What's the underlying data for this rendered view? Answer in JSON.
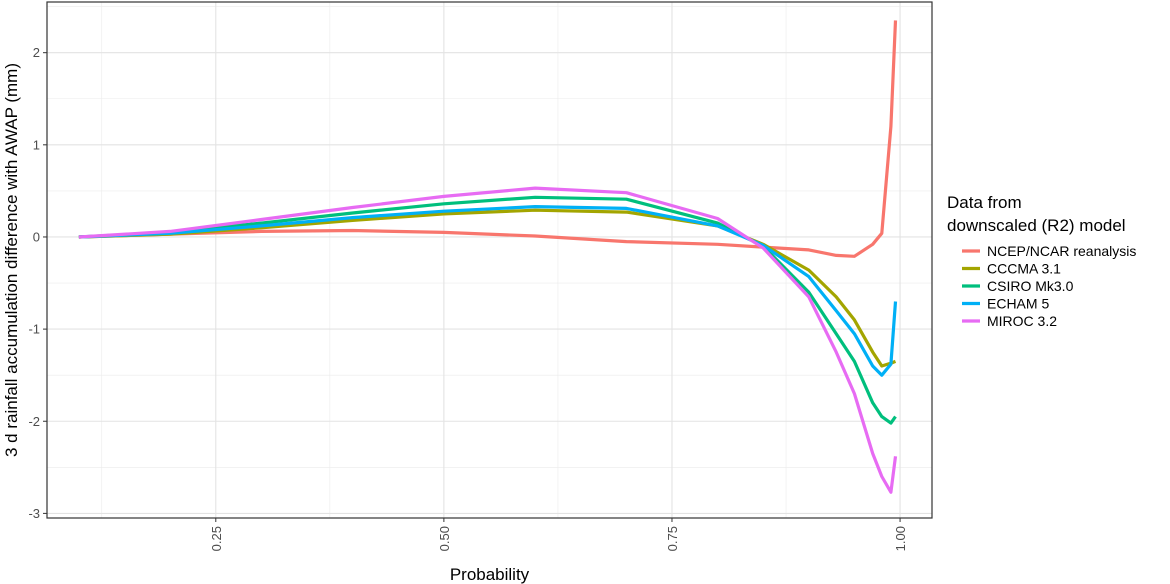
{
  "chart_data": {
    "type": "line",
    "title": "",
    "xlabel": "Probability",
    "ylabel": "3 d rainfall accumulation difference with AWAP (mm)",
    "xlim": [
      0.065,
      1.035
    ],
    "ylim": [
      -3.05,
      2.55
    ],
    "x_ticks": [
      0.25,
      0.5,
      0.75,
      1.0
    ],
    "x_tick_labels": [
      "0.25",
      "0.50",
      "0.75",
      "1.00"
    ],
    "y_ticks": [
      -3,
      -2,
      -1,
      0,
      1,
      2
    ],
    "y_tick_labels": [
      "-3",
      "-2",
      "-1",
      "0",
      "1",
      "2"
    ],
    "grid": true,
    "legend": {
      "title_lines": [
        "Data from",
        "downscaled (R2) model"
      ],
      "position": "right"
    },
    "x": [
      0.1,
      0.2,
      0.3,
      0.4,
      0.5,
      0.6,
      0.7,
      0.8,
      0.85,
      0.9,
      0.93,
      0.95,
      0.97,
      0.98,
      0.99,
      0.995
    ],
    "series": [
      {
        "name": "NCEP/NCAR reanalysis",
        "color": "#F8766D",
        "values": [
          0.0,
          0.03,
          0.06,
          0.07,
          0.05,
          0.01,
          -0.05,
          -0.08,
          -0.11,
          -0.14,
          -0.2,
          -0.21,
          -0.08,
          0.04,
          1.2,
          2.35
        ]
      },
      {
        "name": "CCCMA 3.1",
        "color": "#A3A500",
        "values": [
          0.0,
          0.03,
          0.1,
          0.18,
          0.25,
          0.29,
          0.27,
          0.12,
          -0.08,
          -0.36,
          -0.65,
          -0.9,
          -1.25,
          -1.4,
          -1.37,
          -1.35
        ]
      },
      {
        "name": "CSIRO Mk3.0",
        "color": "#00BF7D",
        "values": [
          0.0,
          0.05,
          0.15,
          0.26,
          0.36,
          0.43,
          0.41,
          0.15,
          -0.1,
          -0.6,
          -1.05,
          -1.35,
          -1.8,
          -1.95,
          -2.02,
          -1.95
        ]
      },
      {
        "name": "ECHAM 5",
        "color": "#00B0F6",
        "values": [
          0.0,
          0.04,
          0.12,
          0.21,
          0.28,
          0.33,
          0.31,
          0.12,
          -0.09,
          -0.43,
          -0.8,
          -1.05,
          -1.4,
          -1.5,
          -1.38,
          -0.7
        ]
      },
      {
        "name": "MIROC 3.2",
        "color": "#E76BF3",
        "values": [
          0.0,
          0.06,
          0.19,
          0.32,
          0.44,
          0.53,
          0.48,
          0.2,
          -0.12,
          -0.65,
          -1.25,
          -1.7,
          -2.35,
          -2.6,
          -2.77,
          -2.38
        ]
      }
    ]
  }
}
